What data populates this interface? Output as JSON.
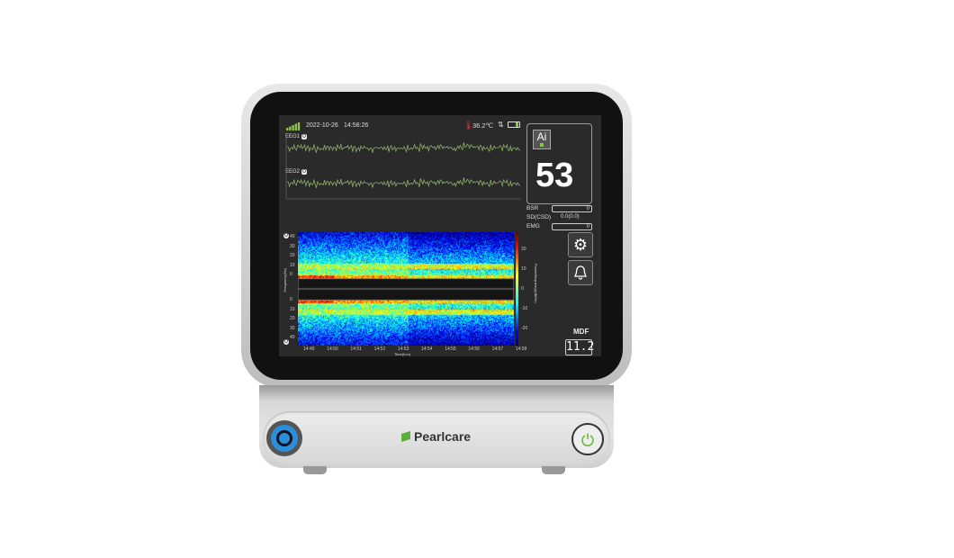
{
  "device": {
    "brand": "Pearlcare"
  },
  "status": {
    "date": "2022-10-26",
    "time": "14:58:26",
    "temperature": "36.2℃",
    "signal_icon": "signal-bars-icon",
    "battery_icon": "battery-icon",
    "thermometer_icon": "thermometer-icon"
  },
  "channels": [
    {
      "label": "EEG1",
      "badge": "O"
    },
    {
      "label": "EEG2",
      "badge": "O"
    }
  ],
  "index_panel": {
    "badge": "Ai",
    "value": "53"
  },
  "metrics": [
    {
      "label": "BSR",
      "value": "0"
    },
    {
      "label": "SD(CSD)",
      "value": "0.0(0.0)"
    },
    {
      "label": "EMG",
      "value": "0"
    }
  ],
  "buttons": {
    "settings": "gear-icon",
    "alarm": "bell-icon"
  },
  "mdf": {
    "label": "MDF",
    "value": "11.2"
  },
  "spectrogram": {
    "y_ticks_upper": [
      "40",
      "30",
      "20",
      "10",
      "0"
    ],
    "y_ticks_lower": [
      "0",
      "10",
      "20",
      "30",
      "40"
    ],
    "x_ticks": [
      "14:49",
      "14:50",
      "14:51",
      "14:52",
      "14:53",
      "14:54",
      "14:55",
      "14:56",
      "14:57",
      "14:58"
    ],
    "xlabel": "Time(h:m)",
    "ylabel": "Frequency(Hz)",
    "colorbar_label": "Power/frequency(dB/Hz)",
    "colorbar_ticks": [
      "20",
      "10",
      "0",
      "-10",
      "-20"
    ],
    "channel_badges": [
      "O",
      "O"
    ]
  },
  "colors": {
    "wave": "#8fae6a",
    "signal": "#8bc34a",
    "power_led": "#6dbb3a",
    "connector": "#2a8fd8"
  }
}
